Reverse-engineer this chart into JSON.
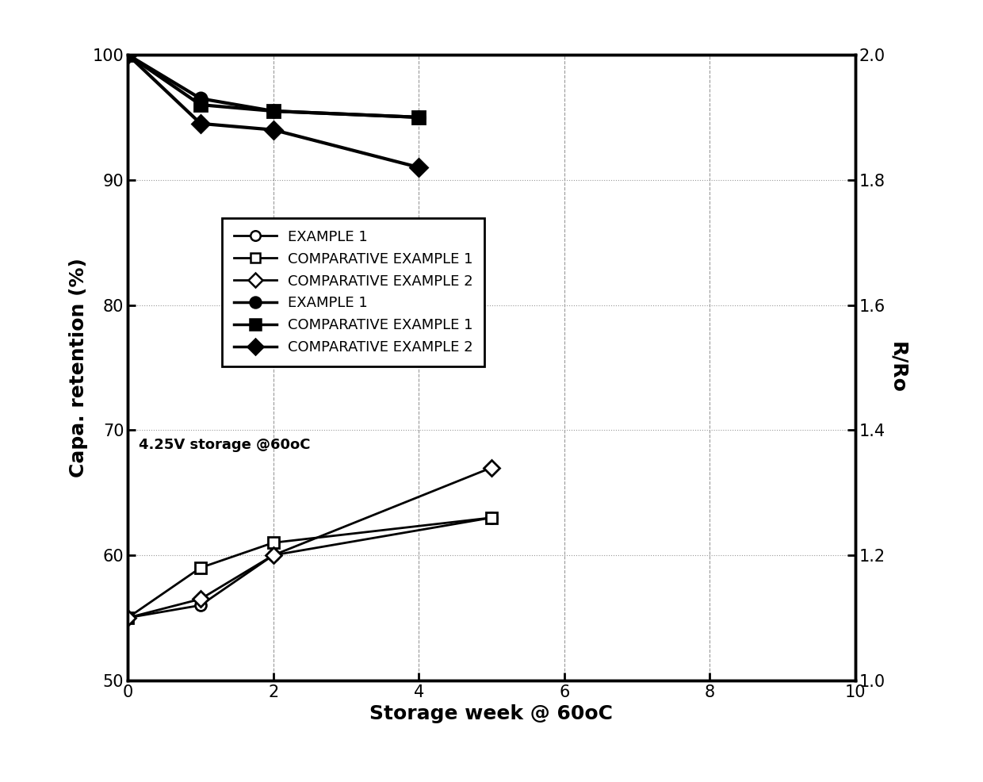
{
  "left_axis": {
    "label": "Capa. retention (%)",
    "ylim": [
      50,
      100
    ],
    "yticks": [
      50,
      60,
      70,
      80,
      90,
      100
    ]
  },
  "right_axis": {
    "label": "R/Ro",
    "ylim": [
      1.0,
      2.0
    ],
    "yticks": [
      1.0,
      1.2,
      1.4,
      1.6,
      1.8,
      2.0
    ]
  },
  "xaxis": {
    "label": "Storage week @ 60oC",
    "xlim": [
      0,
      10
    ],
    "xticks": [
      0,
      2,
      4,
      6,
      8,
      10
    ]
  },
  "annotation": "4.25V storage @60oC",
  "series_open": [
    {
      "name": "EXAMPLE 1",
      "x": [
        0,
        1,
        2,
        5
      ],
      "y": [
        55,
        56,
        60,
        63
      ],
      "marker": "o",
      "linewidth": 2.0,
      "markersize": 10
    },
    {
      "name": "COMPARATIVE EXAMPLE 1",
      "x": [
        0,
        1,
        2,
        5
      ],
      "y": [
        55,
        59,
        61,
        63
      ],
      "marker": "s",
      "linewidth": 2.0,
      "markersize": 10
    },
    {
      "name": "COMPARATIVE EXAMPLE 2",
      "x": [
        0,
        1,
        2,
        5
      ],
      "y": [
        55,
        56.5,
        60,
        67
      ],
      "marker": "D",
      "linewidth": 2.0,
      "markersize": 10
    }
  ],
  "series_filled": [
    {
      "name": "EXAMPLE 1",
      "x": [
        0,
        1,
        2,
        4
      ],
      "y": [
        100,
        96.5,
        95.5,
        95.0
      ],
      "marker": "o",
      "linewidth": 3.0,
      "markersize": 11
    },
    {
      "name": "COMPARATIVE EXAMPLE 1",
      "x": [
        0,
        1,
        2,
        4
      ],
      "y": [
        100,
        96.0,
        95.5,
        95.0
      ],
      "marker": "s",
      "linewidth": 3.0,
      "markersize": 11
    },
    {
      "name": "COMPARATIVE EXAMPLE 2",
      "x": [
        0,
        1,
        2,
        4
      ],
      "y": [
        100,
        94.5,
        94.0,
        91.0
      ],
      "marker": "D",
      "linewidth": 3.0,
      "markersize": 11
    }
  ],
  "background_color": "#ffffff",
  "grid_color": "#999999",
  "legend_fontsize": 13,
  "axis_label_fontsize": 18,
  "tick_fontsize": 15,
  "spine_linewidth": 2.5
}
